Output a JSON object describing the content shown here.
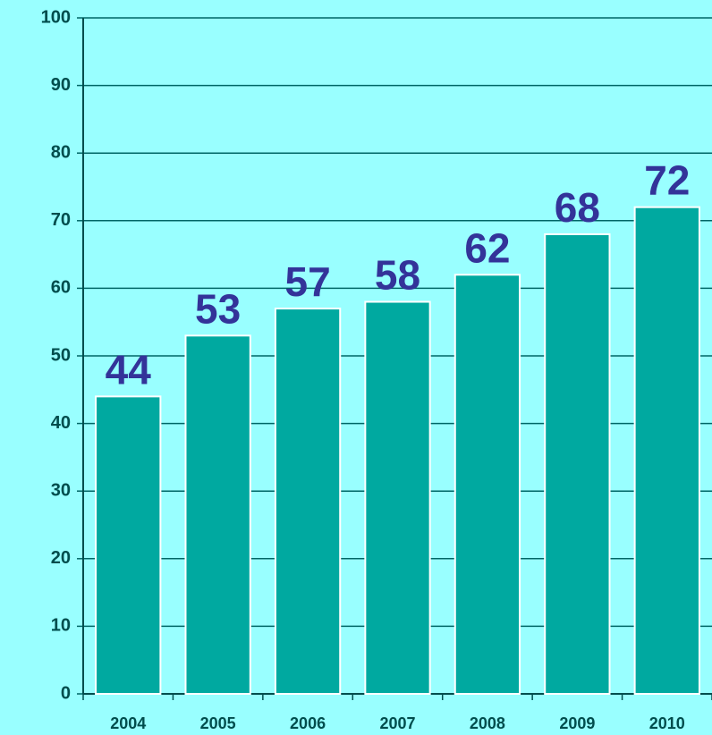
{
  "chart_data": {
    "type": "bar",
    "categories": [
      "2004",
      "2005",
      "2006",
      "2007",
      "2008",
      "2009",
      "2010"
    ],
    "values": [
      44,
      53,
      57,
      58,
      62,
      68,
      72
    ],
    "color": "#00a9a0",
    "label_color": "#333399",
    "ylim": [
      0,
      100
    ],
    "yticks": [
      0,
      10,
      20,
      30,
      40,
      50,
      60,
      70,
      80,
      90,
      100
    ],
    "grid": true
  }
}
